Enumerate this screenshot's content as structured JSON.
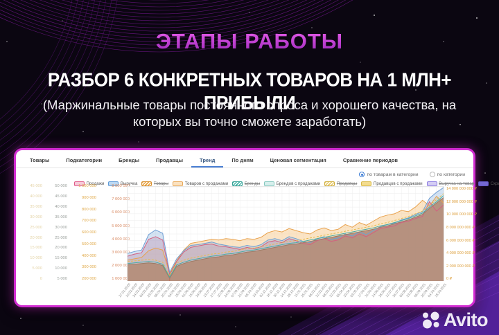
{
  "header": {
    "title": "ЭТАПЫ РАБОТЫ",
    "subtitle": "РАЗБОР 6 КОНКРЕТНЫХ ТОВАРОВ НА 1 МЛН+ ПРИБЫЛИ",
    "description": "(Маржинальные товары постоянного спроса и хорошего качества, на которых вы точно сможете заработать)"
  },
  "dashboard": {
    "tabs": [
      {
        "label": "Товары",
        "active": false
      },
      {
        "label": "Подкатегории",
        "active": false
      },
      {
        "label": "Бренды",
        "active": false
      },
      {
        "label": "Продавцы",
        "active": false
      },
      {
        "label": "Тренд",
        "active": true
      },
      {
        "label": "По дням",
        "active": false
      },
      {
        "label": "Ценовая сегментация",
        "active": false
      },
      {
        "label": "Сравнение периодов",
        "active": false
      }
    ],
    "view_options": [
      {
        "label": "по товарам в категории",
        "selected": true
      },
      {
        "label": "по категории",
        "selected": false
      }
    ],
    "legend": [
      {
        "label": "Продажи",
        "fill": "#f6c9d8",
        "border": "#e05c8a",
        "hatched": false,
        "struck": false
      },
      {
        "label": "Выручка",
        "fill": "#bcd8f2",
        "border": "#5f9bd8",
        "hatched": false,
        "struck": false
      },
      {
        "label": "Товары",
        "fill": "#e9a23f",
        "border": "#d88f2e",
        "hatched": true,
        "struck": true
      },
      {
        "label": "Товаров с продажами",
        "fill": "#fbe2c0",
        "border": "#e8a85a",
        "hatched": false,
        "struck": false
      },
      {
        "label": "Бренды",
        "fill": "#49b8ac",
        "border": "#38a095",
        "hatched": true,
        "struck": true
      },
      {
        "label": "Брендов с продажами",
        "fill": "#d6efec",
        "border": "#86c8bf",
        "hatched": false,
        "struck": false
      },
      {
        "label": "Продавцы",
        "fill": "#e7c96a",
        "border": "#cfae3e",
        "hatched": true,
        "struck": true
      },
      {
        "label": "Продавцов с продажами",
        "fill": "#f3dc8e",
        "border": "#d9ba4a",
        "hatched": false,
        "struck": false
      },
      {
        "label": "Выручка на товар",
        "fill": "#d4cdf4",
        "border": "#8d7ce0",
        "hatched": false,
        "struck": true
      },
      {
        "label": "Скрыть все",
        "fill": "#7468d2",
        "border": "#6356c4",
        "hatched": false,
        "struck": false
      }
    ],
    "left_axes": [
      {
        "color": "#e4d3a6",
        "ticks": [
          "45 000",
          "40 000",
          "35 000",
          "30 000",
          "25 000",
          "20 000",
          "15 000",
          "10 000",
          "5 000",
          "0"
        ]
      },
      {
        "color": "#9aa09c",
        "ticks": [
          "50 000",
          "45 000",
          "40 000",
          "35 000",
          "30 000",
          "25 000",
          "20 000",
          "15 000",
          "10 000",
          "5 000"
        ]
      },
      {
        "color": "#e0a948",
        "ticks": [
          "1 000 000",
          "900 000",
          "800 000",
          "700 000",
          "600 000",
          "500 000",
          "400 000",
          "300 000",
          "200 000"
        ]
      },
      {
        "color": "#d98a62",
        "ticks": [
          "8 000 000",
          "7 000 000",
          "6 000 000",
          "5 000 000",
          "4 000 000",
          "3 000 000",
          "2 000 000",
          "1 000 000"
        ]
      }
    ],
    "right_axis": {
      "color": "#dd9f3c",
      "ticks": [
        "14 000 000 000 ₽",
        "12 000 000 000 ₽",
        "10 000 000 000 ₽",
        "8 000 000 000 ₽",
        "6 000 000 000 ₽",
        "4 000 000 000 ₽",
        "2 000 000 000 ₽",
        "0 ₽"
      ]
    }
  },
  "chart_data": {
    "type": "area",
    "x": [
      "27.01.2020",
      "10.02.2020",
      "24.02.2020",
      "09.03.2020",
      "23.03.2020",
      "06.04.2020",
      "20.04.2020",
      "04.05.2020",
      "18.05.2020",
      "01.06.2020",
      "15.06.2020",
      "29.06.2020",
      "13.07.2020",
      "27.07.2020",
      "10.08.2020",
      "24.08.2020",
      "07.09.2020",
      "21.09.2020",
      "05.10.2020",
      "19.10.2020",
      "02.11.2020",
      "16.11.2020",
      "30.11.2020",
      "14.12.2020",
      "28.12.2020",
      "11.01.2021",
      "25.01.2021",
      "08.02.2021",
      "22.02.2021",
      "08.03.2021",
      "22.03.2021",
      "05.04.2021",
      "19.04.2021",
      "03.05.2021",
      "17.05.2021",
      "31.05.2021",
      "14.06.2021",
      "28.06.2021",
      "12.07.2021",
      "26.07.2021",
      "09.08.2021",
      "23.08.2021",
      "06.09.2021",
      "20.09.2021",
      "04.10.2021",
      "18.10.2021"
    ],
    "y_axis_right": {
      "label": "₽",
      "max_bln": 14,
      "min_bln": 0
    },
    "unit": "billion ₽ (right axis)",
    "grid": true,
    "legend_position": "top",
    "marker": {
      "index": 6,
      "color": "#cc5a4a"
    },
    "series": [
      {
        "name": "Товаров с продажами",
        "stroke": "#e8a14c",
        "fill": "rgba(248,205,150,0.55)",
        "values_bln": [
          3.1,
          3.3,
          3.5,
          4.5,
          4.9,
          4.6,
          1.1,
          3.0,
          4.6,
          5.6,
          5.8,
          6.0,
          6.2,
          6.1,
          6.3,
          6.2,
          6.0,
          6.3,
          6.2,
          6.5,
          7.2,
          7.5,
          7.3,
          7.8,
          7.5,
          7.2,
          7.0,
          7.6,
          7.9,
          7.5,
          7.7,
          8.4,
          8.0,
          8.7,
          8.3,
          8.9,
          9.5,
          9.8,
          10.0,
          10.5,
          10.3,
          11.0,
          12.0,
          11.2,
          12.6,
          11.6
        ]
      },
      {
        "name": "Продажи",
        "stroke": "#d26080",
        "fill": "rgba(226,140,160,0.45)",
        "values_bln": [
          3.7,
          4.0,
          4.2,
          6.2,
          6.6,
          6.1,
          0.9,
          2.9,
          4.3,
          5.0,
          5.2,
          5.4,
          5.5,
          5.2,
          5.1,
          4.9,
          4.7,
          5.0,
          4.8,
          5.1,
          5.8,
          6.0,
          5.7,
          6.3,
          6.0,
          5.6,
          5.4,
          6.0,
          6.3,
          5.9,
          6.1,
          6.7,
          6.4,
          7.0,
          6.6,
          7.2,
          7.8,
          8.0,
          8.2,
          8.7,
          8.9,
          9.3,
          9.6,
          11.8,
          10.4,
          11.3
        ]
      },
      {
        "name": "Выручка",
        "stroke": "#6f9ed4",
        "fill": "rgba(148,186,226,0.40)",
        "values_bln": [
          4.1,
          4.4,
          4.6,
          6.9,
          7.6,
          7.1,
          1.3,
          3.3,
          4.5,
          5.3,
          5.4,
          5.6,
          5.8,
          5.5,
          5.3,
          5.1,
          5.0,
          5.3,
          5.1,
          5.4,
          6.1,
          6.3,
          6.0,
          6.6,
          6.3,
          5.9,
          5.7,
          6.3,
          6.6,
          6.2,
          6.4,
          7.0,
          6.7,
          7.3,
          6.9,
          7.5,
          8.1,
          8.4,
          8.6,
          9.1,
          9.4,
          9.9,
          10.3,
          12.3,
          13.2,
          13.9
        ]
      },
      {
        "name": "Выручка на товар",
        "stroke": "#9c7a64",
        "fill": "rgba(180,142,122,0.93)",
        "values_bln": [
          2.4,
          2.5,
          2.6,
          2.7,
          2.6,
          2.3,
          0.4,
          2.2,
          2.6,
          2.9,
          3.1,
          3.3,
          3.5,
          3.6,
          3.8,
          3.9,
          4.1,
          4.3,
          4.4,
          4.6,
          4.8,
          5.0,
          5.2,
          5.4,
          5.5,
          5.7,
          5.9,
          6.1,
          6.3,
          6.5,
          6.7,
          6.9,
          7.1,
          7.3,
          7.5,
          7.7,
          8.0,
          8.2,
          8.5,
          8.8,
          9.1,
          9.5,
          9.9,
          10.8,
          11.6,
          12.4
        ]
      },
      {
        "name": "Брендов с продажами",
        "stroke": "#4aaca2",
        "fill": "none",
        "values_bln": [
          2.6,
          2.7,
          2.8,
          2.9,
          2.8,
          2.5,
          0.6,
          2.4,
          2.8,
          3.1,
          3.3,
          3.5,
          3.7,
          3.8,
          4.0,
          4.1,
          4.3,
          4.5,
          4.6,
          4.8,
          5.0,
          5.2,
          5.4,
          5.6,
          5.7,
          5.9,
          6.1,
          6.3,
          6.5,
          6.7,
          6.9,
          7.1,
          7.3,
          7.5,
          7.7,
          7.9,
          8.2,
          8.4,
          8.7,
          9.0,
          9.3,
          9.7,
          10.1,
          11.0,
          11.8,
          12.7
        ]
      },
      {
        "name": "Продавцов с продажами",
        "stroke": "#e3bc4e",
        "fill": "none",
        "dash": "3,2",
        "values_bln": [
          2.9,
          3.0,
          3.1,
          3.2,
          3.1,
          2.8,
          0.8,
          2.7,
          3.1,
          3.4,
          3.6,
          3.8,
          4.0,
          4.1,
          4.3,
          4.4,
          4.6,
          4.8,
          4.9,
          5.1,
          5.3,
          5.5,
          5.7,
          5.9,
          6.0,
          6.2,
          6.4,
          6.6,
          6.8,
          7.0,
          7.2,
          7.4,
          7.6,
          7.8,
          8.0,
          8.2,
          8.5,
          8.7,
          9.0,
          9.3,
          9.6,
          10.0,
          10.4,
          11.3,
          12.1,
          13.0
        ]
      }
    ]
  },
  "footer": {
    "brand": "Avito"
  }
}
